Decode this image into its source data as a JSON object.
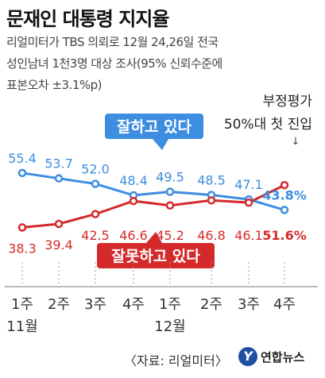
{
  "header": {
    "title": "문재인 대통령 지지율",
    "subtitle_line1": "리얼미터가 TBS 의뢰로 12월 24,26일 전국",
    "subtitle_line2": "성인남녀 1천3명 대상 조사(95% 신뢰수준에",
    "subtitle_line3": "표본오차 ±3.1%p)"
  },
  "annotation": {
    "line1": "부정평가",
    "line2": "50%대 첫 진입",
    "arrow": "↓"
  },
  "footer": {
    "source": "〈자료: 리얼미터〉",
    "logo_mark": "Y",
    "logo_text": "연합뉴스"
  },
  "colors": {
    "approve": "#3d8de0",
    "disapprove": "#d42a2a",
    "approve_label_bg": "#3d8de0",
    "disapprove_label_bg": "#d42a2a"
  },
  "chart_data": {
    "type": "line",
    "categories": [
      "1주",
      "2주",
      "3주",
      "4주",
      "1주",
      "2주",
      "3주",
      "4주"
    ],
    "month_labels": [
      {
        "label": "11월",
        "span": [
          0,
          3
        ]
      },
      {
        "label": "12월",
        "span": [
          4,
          7
        ]
      }
    ],
    "series": [
      {
        "name": "잘하고 있다",
        "values": [
          55.4,
          53.7,
          52.0,
          48.4,
          49.5,
          48.5,
          47.1,
          43.8
        ],
        "value_labels": [
          "55.4",
          "53.7",
          "52.0",
          "48.4",
          "49.5",
          "48.5",
          "47.1",
          "43.8%"
        ]
      },
      {
        "name": "잘못하고 있다",
        "values": [
          38.3,
          39.4,
          42.5,
          46.6,
          45.2,
          46.8,
          46.1,
          51.6
        ],
        "value_labels": [
          "38.3",
          "39.4",
          "42.5",
          "46.6",
          "45.2",
          "46.8",
          "46.1",
          "51.6%"
        ]
      }
    ],
    "title": "문재인 대통령 지지율",
    "grid": false,
    "legend": "inline labels"
  }
}
